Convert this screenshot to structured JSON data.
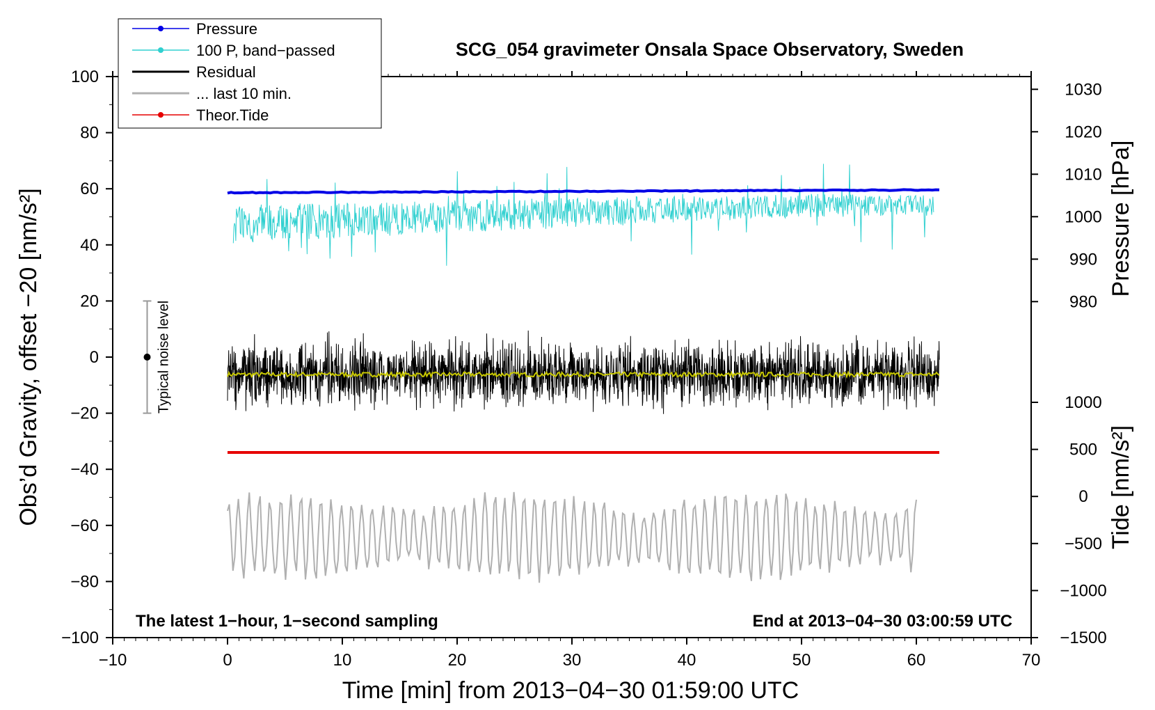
{
  "chart_data": {
    "type": "line",
    "title": "SCG_054 gravimeter Onsala Space Observatory, Sweden",
    "xlabel": "Time [min] from 2013−04−30 01:59:00 UTC",
    "ylabel_left": "Obs’d Gravity, offset −20 [nm/s²]",
    "ylabel_right_pressure": "Pressure [hPa]",
    "ylabel_right_tide": "Tide [nm/s²]",
    "xlim": [
      -10,
      70
    ],
    "ylim": [
      -100,
      100
    ],
    "x_ticks": [
      -10,
      0,
      10,
      20,
      30,
      40,
      50,
      60,
      70
    ],
    "x_tick_labels": [
      "−10",
      "0",
      "10",
      "20",
      "30",
      "40",
      "50",
      "60",
      "70"
    ],
    "y_ticks": [
      -100,
      -80,
      -60,
      -40,
      -20,
      0,
      20,
      40,
      60,
      80,
      100
    ],
    "y_tick_labels": [
      "−100",
      "−80",
      "−60",
      "−40",
      "−20",
      "0",
      "20",
      "40",
      "60",
      "80",
      "100"
    ],
    "pressure_axis": {
      "range": [
        973,
        1033
      ],
      "ticks": [
        980,
        990,
        1000,
        1010,
        1020,
        1030
      ],
      "tick_labels": [
        "980",
        "990",
        "1000",
        "1010",
        "1020",
        "1030"
      ]
    },
    "tide_axis": {
      "range": [
        -1500,
        1000
      ],
      "ticks": [
        -1500,
        -1000,
        -500,
        0,
        500,
        1000
      ],
      "tick_labels": [
        "−1500",
        "−1000",
        "−500",
        "0",
        "500",
        "1000"
      ]
    },
    "legend": {
      "placement": "top-left",
      "entries": [
        {
          "label": "Pressure",
          "color": "#0000e6",
          "marker": true
        },
        {
          "label": "100 P, band−passed",
          "color": "#30d0d0",
          "marker": true
        },
        {
          "label": "Residual",
          "color": "#000000",
          "marker": false
        },
        {
          "label": "... last 10 min.",
          "color": "#b0b0b0",
          "marker": false
        },
        {
          "label": "Theor.Tide",
          "color": "#e60000",
          "marker": true
        }
      ]
    },
    "series": [
      {
        "name": "Pressure",
        "color": "#0000e6",
        "axis": "left",
        "x_start": 0,
        "x_end": 62,
        "value_start": 58.6,
        "value_end": 59.6
      },
      {
        "name": "100 P, band−passed",
        "color": "#30d0d0",
        "axis": "left",
        "x_start": 0.5,
        "x_end": 61.5,
        "mean_start": 47.5,
        "mean_end": 54.0,
        "amplitude": 6
      },
      {
        "name": "Residual",
        "color": "#000000",
        "axis": "left",
        "x_start": 0,
        "x_end": 62,
        "mean": -6,
        "amplitude": 16
      },
      {
        "name": "Residual smoothed",
        "color": "#c8c800",
        "axis": "left",
        "x_start": 0,
        "x_end": 62,
        "mean": -6.2,
        "amplitude": 0.8
      },
      {
        "name": "... last 10 min.",
        "color": "#b0b0b0",
        "axis": "left",
        "x_start": 0,
        "x_end": 60,
        "mean": -64,
        "amplitude": 15
      },
      {
        "name": "Theor.Tide",
        "color": "#e60000",
        "axis": "left",
        "x_start": 0,
        "x_end": 62,
        "value": -34
      }
    ],
    "noise_indicator": {
      "label": "Typical noise level",
      "x": -7,
      "center": 0,
      "low": -20,
      "high": 20
    },
    "annotations": {
      "bottom_left": "The latest 1−hour, 1−second sampling",
      "bottom_right": "End at 2013−04−30 03:00:59 UTC"
    }
  }
}
